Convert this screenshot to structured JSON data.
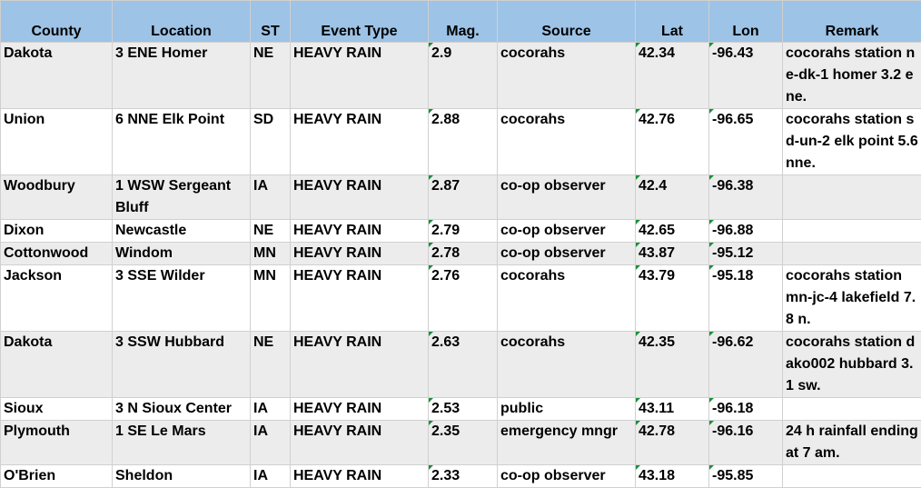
{
  "columns": [
    "County",
    "Location",
    "ST",
    "Event Type",
    "Mag.",
    "Source",
    "Lat",
    "Lon",
    "Remark"
  ],
  "rows": [
    {
      "county": "Dakota",
      "location": "3 ENE Homer",
      "st": "NE",
      "event": "HEAVY RAIN",
      "mag": "2.9",
      "source": "cocorahs",
      "lat": "42.34",
      "lon": "-96.43",
      "remark": "cocorahs station ne-dk-1 homer 3.2 ene."
    },
    {
      "county": "Union",
      "location": "6 NNE Elk Point",
      "st": "SD",
      "event": "HEAVY RAIN",
      "mag": "2.88",
      "source": "cocorahs",
      "lat": "42.76",
      "lon": "-96.65",
      "remark": "cocorahs station sd-un-2 elk point 5.6 nne."
    },
    {
      "county": "Woodbury",
      "location": "1 WSW Sergeant Bluff",
      "st": "IA",
      "event": "HEAVY RAIN",
      "mag": "2.87",
      "source": "co-op observer",
      "lat": "42.4",
      "lon": "-96.38",
      "remark": ""
    },
    {
      "county": "Dixon",
      "location": "Newcastle",
      "st": "NE",
      "event": "HEAVY RAIN",
      "mag": "2.79",
      "source": "co-op observer",
      "lat": "42.65",
      "lon": "-96.88",
      "remark": ""
    },
    {
      "county": "Cottonwood",
      "location": "Windom",
      "st": "MN",
      "event": "HEAVY RAIN",
      "mag": "2.78",
      "source": "co-op observer",
      "lat": "43.87",
      "lon": "-95.12",
      "remark": ""
    },
    {
      "county": "Jackson",
      "location": "3 SSE Wilder",
      "st": "MN",
      "event": "HEAVY RAIN",
      "mag": "2.76",
      "source": "cocorahs",
      "lat": "43.79",
      "lon": "-95.18",
      "remark": "cocorahs station mn-jc-4 lakefield 7.8 n."
    },
    {
      "county": "Dakota",
      "location": "3 SSW Hubbard",
      "st": "NE",
      "event": "HEAVY RAIN",
      "mag": "2.63",
      "source": "cocorahs",
      "lat": "42.35",
      "lon": "-96.62",
      "remark": "cocorahs station dako002 hubbard 3.1 sw."
    },
    {
      "county": "Sioux",
      "location": "3 N Sioux Center",
      "st": "IA",
      "event": "HEAVY RAIN",
      "mag": "2.53",
      "source": "public",
      "lat": "43.11",
      "lon": "-96.18",
      "remark": ""
    },
    {
      "county": "Plymouth",
      "location": "1 SE Le Mars",
      "st": "IA",
      "event": "HEAVY RAIN",
      "mag": "2.35",
      "source": "emergency mngr",
      "lat": "42.78",
      "lon": "-96.16",
      "remark": "24 h rainfall ending at 7 am."
    },
    {
      "county": "O'Brien",
      "location": "Sheldon",
      "st": "IA",
      "event": "HEAVY RAIN",
      "mag": "2.33",
      "source": "co-op observer",
      "lat": "43.18",
      "lon": "-95.85",
      "remark": ""
    }
  ],
  "colors": {
    "header_bg": "#9dc3e6",
    "stripe_bg": "#ececec",
    "grid": "#d0d0d0",
    "error_marker": "#1a8f3a"
  }
}
